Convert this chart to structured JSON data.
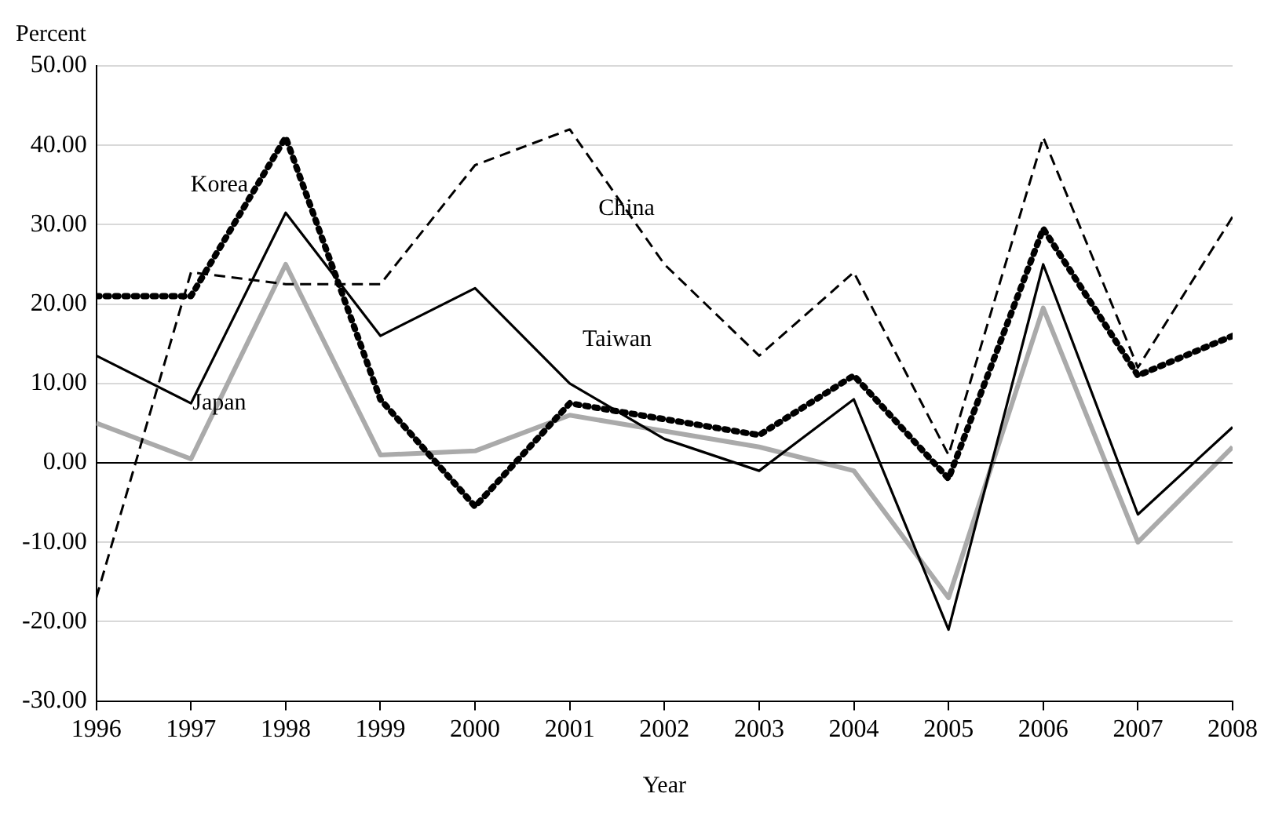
{
  "chart_data": {
    "type": "line",
    "xlabel": "Year",
    "ylabel": "Percent",
    "legend": false,
    "grid": "y",
    "marker": "none",
    "x": [
      1996,
      1997,
      1998,
      1999,
      2000,
      2001,
      2002,
      2003,
      2004,
      2005,
      2006,
      2007,
      2008
    ],
    "xlim": [
      1996,
      2008
    ],
    "xticks": [
      1996,
      1997,
      1998,
      1999,
      2000,
      2001,
      2002,
      2003,
      2004,
      2005,
      2006,
      2007,
      2008
    ],
    "ylim": [
      -30,
      50
    ],
    "yticks": [
      {
        "value": -30,
        "label": "-30.00"
      },
      {
        "value": -20,
        "label": "-20.00"
      },
      {
        "value": -10,
        "label": "-10.00"
      },
      {
        "value": 0,
        "label": "0.00"
      },
      {
        "value": 10,
        "label": "10.00"
      },
      {
        "value": 20,
        "label": "20.00"
      },
      {
        "value": 30,
        "label": "30.00"
      },
      {
        "value": 40,
        "label": "40.00"
      },
      {
        "value": 50,
        "label": "50.00"
      }
    ],
    "ref_lines": [
      {
        "axis": "y",
        "value": 0,
        "color": "#000000"
      }
    ],
    "series": [
      {
        "name": "China",
        "color": "#000000",
        "line_style": "dashed",
        "values": [
          -17,
          24,
          22.5,
          22.5,
          37.5,
          42,
          25,
          13.5,
          24,
          1,
          41,
          12,
          31
        ]
      },
      {
        "name": "Korea",
        "color": "#000000",
        "line_style": "dotted",
        "values": [
          21,
          21,
          41,
          8,
          -5.5,
          7.5,
          5.5,
          3.5,
          11,
          -2,
          29.5,
          11,
          16
        ]
      },
      {
        "name": "Taiwan",
        "color": "#000000",
        "line_style": "solid",
        "values": [
          13.5,
          7.5,
          31.5,
          16,
          22,
          10,
          3,
          -1,
          8,
          -21,
          25,
          -6.5,
          4.5
        ]
      },
      {
        "name": "Japan",
        "color": "#aaaaaa",
        "line_style": "solid",
        "values": [
          5,
          0.5,
          25,
          1,
          1.5,
          6,
          4,
          2,
          -1,
          -17,
          19.5,
          -10,
          2
        ]
      }
    ]
  }
}
